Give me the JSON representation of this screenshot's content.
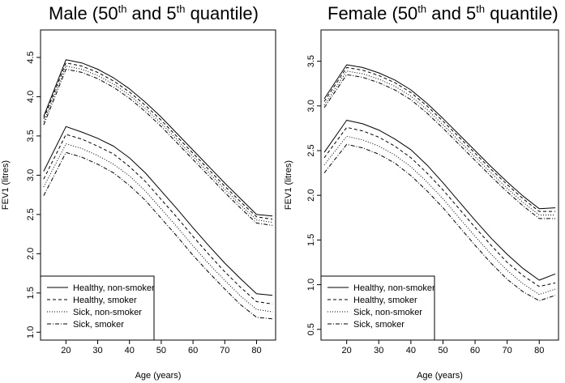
{
  "chart_data": [
    {
      "type": "line",
      "title": "Male (50th and 5th quantile)",
      "title_main": "Male (50",
      "title_sup1": "th",
      "title_mid": " and 5",
      "title_sup2": "th",
      "title_end": " quantile)",
      "xlabel": "Age (years)",
      "ylabel": "FEV1 (litres)",
      "xlim": [
        12,
        86
      ],
      "ylim": [
        0.9,
        4.85
      ],
      "xticks": [
        20,
        30,
        40,
        50,
        60,
        70,
        80
      ],
      "yticks": [
        1.0,
        1.5,
        2.0,
        2.5,
        3.0,
        3.5,
        4.0,
        4.5
      ],
      "ytick_labels": [
        "1.0",
        "1.5",
        "2.0",
        "2.5",
        "3.0",
        "3.5",
        "4.0",
        "4.5"
      ],
      "legend_position": "bottom-left",
      "x": [
        13,
        20,
        25,
        30,
        35,
        40,
        45,
        50,
        55,
        60,
        65,
        70,
        75,
        80,
        85
      ],
      "series": [
        {
          "name": "Healthy, non-smoker",
          "style": "solid",
          "quantile": "50th",
          "values": [
            3.75,
            4.47,
            4.43,
            4.35,
            4.24,
            4.1,
            3.93,
            3.74,
            3.53,
            3.32,
            3.11,
            2.9,
            2.7,
            2.5,
            2.48
          ]
        },
        {
          "name": "Healthy, smoker",
          "style": "dashed",
          "quantile": "50th",
          "values": [
            3.72,
            4.43,
            4.39,
            4.31,
            4.2,
            4.06,
            3.89,
            3.7,
            3.49,
            3.28,
            3.07,
            2.86,
            2.66,
            2.47,
            2.44
          ]
        },
        {
          "name": "Sick, non-smoker",
          "style": "dotted",
          "quantile": "50th",
          "values": [
            3.68,
            4.39,
            4.35,
            4.27,
            4.16,
            4.02,
            3.85,
            3.66,
            3.45,
            3.24,
            3.03,
            2.82,
            2.62,
            2.43,
            2.4
          ]
        },
        {
          "name": "Sick, smoker",
          "style": "dotdash",
          "quantile": "50th",
          "values": [
            3.64,
            4.35,
            4.31,
            4.23,
            4.12,
            3.98,
            3.81,
            3.62,
            3.41,
            3.2,
            2.99,
            2.78,
            2.58,
            2.39,
            2.36
          ]
        },
        {
          "name": "Healthy, non-smoker",
          "style": "solid",
          "quantile": "5th",
          "values": [
            3.05,
            3.62,
            3.55,
            3.47,
            3.37,
            3.22,
            3.03,
            2.8,
            2.57,
            2.33,
            2.1,
            1.88,
            1.68,
            1.49,
            1.47
          ]
        },
        {
          "name": "Healthy, smoker",
          "style": "dashed",
          "quantile": "5th",
          "values": [
            2.95,
            3.52,
            3.46,
            3.37,
            3.27,
            3.11,
            2.92,
            2.69,
            2.46,
            2.22,
            1.99,
            1.77,
            1.57,
            1.39,
            1.36
          ]
        },
        {
          "name": "Sick, non-smoker",
          "style": "dotted",
          "quantile": "5th",
          "values": [
            2.85,
            3.4,
            3.34,
            3.25,
            3.14,
            2.99,
            2.8,
            2.57,
            2.34,
            2.1,
            1.87,
            1.66,
            1.46,
            1.29,
            1.26
          ]
        },
        {
          "name": "Sick, smoker",
          "style": "dotdash",
          "quantile": "5th",
          "values": [
            2.74,
            3.29,
            3.23,
            3.14,
            3.03,
            2.87,
            2.68,
            2.45,
            2.22,
            1.98,
            1.76,
            1.55,
            1.35,
            1.19,
            1.17
          ]
        }
      ],
      "legend": [
        "Healthy, non-smoker",
        "Healthy, smoker",
        "Sick, non-smoker",
        "Sick, smoker"
      ]
    },
    {
      "type": "line",
      "title": "Female (50th and 5th quantile)",
      "title_main": "Female (50",
      "title_sup1": "th",
      "title_mid": " and 5",
      "title_sup2": "th",
      "title_end": " quantile)",
      "xlabel": "Age (years)",
      "ylabel": "FEV1 (litres)",
      "xlim": [
        12,
        86
      ],
      "ylim": [
        0.38,
        3.85
      ],
      "xticks": [
        20,
        30,
        40,
        50,
        60,
        70,
        80
      ],
      "yticks": [
        0.5,
        1.0,
        1.5,
        2.0,
        2.5,
        3.0,
        3.5
      ],
      "ytick_labels": [
        "0.5",
        "1.0",
        "1.5",
        "2.0",
        "2.5",
        "3.0",
        "3.5"
      ],
      "legend_position": "bottom-left",
      "x": [
        13,
        20,
        25,
        30,
        35,
        40,
        45,
        50,
        55,
        60,
        65,
        70,
        75,
        80,
        85
      ],
      "series": [
        {
          "name": "Healthy, non-smoker",
          "style": "solid",
          "quantile": "50th",
          "values": [
            3.08,
            3.46,
            3.43,
            3.37,
            3.29,
            3.18,
            3.03,
            2.86,
            2.68,
            2.5,
            2.32,
            2.15,
            1.99,
            1.85,
            1.86
          ]
        },
        {
          "name": "Healthy, smoker",
          "style": "dashed",
          "quantile": "50th",
          "values": [
            3.05,
            3.43,
            3.4,
            3.34,
            3.26,
            3.15,
            3.0,
            2.83,
            2.65,
            2.47,
            2.29,
            2.12,
            1.96,
            1.82,
            1.82
          ]
        },
        {
          "name": "Sick, non-smoker",
          "style": "dotted",
          "quantile": "50th",
          "values": [
            3.01,
            3.39,
            3.36,
            3.3,
            3.22,
            3.11,
            2.96,
            2.79,
            2.61,
            2.43,
            2.25,
            2.08,
            1.92,
            1.78,
            1.78
          ]
        },
        {
          "name": "Sick, smoker",
          "style": "dotdash",
          "quantile": "50th",
          "values": [
            2.98,
            3.35,
            3.32,
            3.26,
            3.18,
            3.07,
            2.92,
            2.75,
            2.57,
            2.39,
            2.21,
            2.04,
            1.88,
            1.74,
            1.74
          ]
        },
        {
          "name": "Healthy, non-smoker",
          "style": "solid",
          "quantile": "5th",
          "values": [
            2.48,
            2.84,
            2.8,
            2.73,
            2.63,
            2.51,
            2.34,
            2.14,
            1.93,
            1.72,
            1.52,
            1.34,
            1.18,
            1.05,
            1.12
          ]
        },
        {
          "name": "Healthy, smoker",
          "style": "dashed",
          "quantile": "5th",
          "values": [
            2.42,
            2.76,
            2.72,
            2.65,
            2.55,
            2.42,
            2.25,
            2.06,
            1.85,
            1.64,
            1.44,
            1.25,
            1.1,
            0.98,
            1.02
          ]
        },
        {
          "name": "Sick, non-smoker",
          "style": "dotted",
          "quantile": "5th",
          "values": [
            2.34,
            2.66,
            2.62,
            2.55,
            2.45,
            2.32,
            2.15,
            1.96,
            1.75,
            1.54,
            1.34,
            1.16,
            1.01,
            0.89,
            0.95
          ]
        },
        {
          "name": "Sick, smoker",
          "style": "dotdash",
          "quantile": "5th",
          "values": [
            2.25,
            2.57,
            2.53,
            2.46,
            2.36,
            2.22,
            2.05,
            1.86,
            1.65,
            1.44,
            1.24,
            1.06,
            0.92,
            0.82,
            0.88
          ]
        }
      ],
      "legend": [
        "Healthy, non-smoker",
        "Healthy, smoker",
        "Sick, non-smoker",
        "Sick, smoker"
      ]
    }
  ]
}
